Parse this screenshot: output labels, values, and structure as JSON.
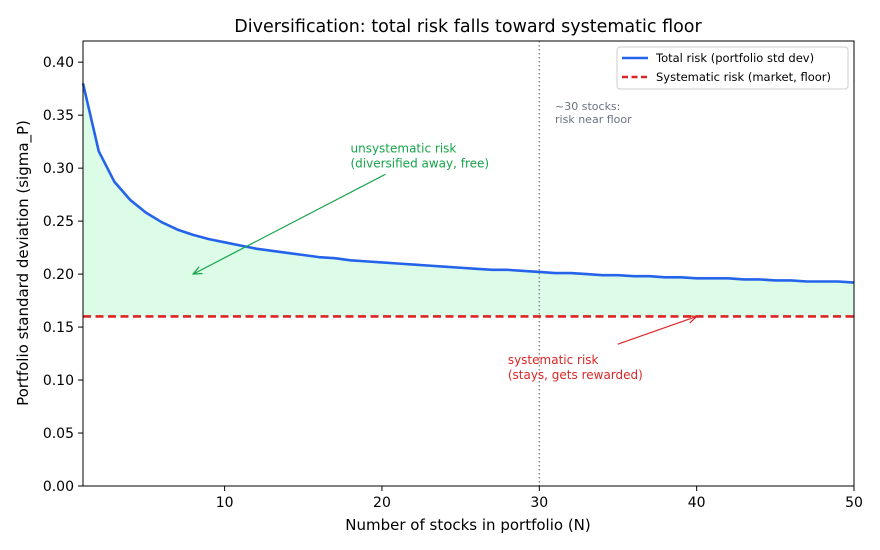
{
  "chart_data": {
    "type": "line",
    "title": "Diversification: total risk falls toward systematic floor",
    "xlabel": "Number of stocks in portfolio (N)",
    "ylabel": "Portfolio standard deviation (sigma_P)",
    "xlim": [
      1,
      50
    ],
    "ylim": [
      0,
      0.42
    ],
    "x_ticks": [
      10,
      20,
      30,
      40,
      50
    ],
    "y_ticks": [
      "0.00",
      "0.05",
      "0.10",
      "0.15",
      "0.20",
      "0.25",
      "0.30",
      "0.35",
      "0.40"
    ],
    "grid": false,
    "legend_position": "top-right",
    "series": [
      {
        "name": "Total risk (portfolio std dev)",
        "color": "#2563eb",
        "style": "solid",
        "x": [
          1,
          2,
          3,
          4,
          5,
          6,
          7,
          8,
          9,
          10,
          11,
          12,
          13,
          14,
          15,
          16,
          17,
          18,
          19,
          20,
          21,
          22,
          23,
          24,
          25,
          26,
          27,
          28,
          29,
          30,
          31,
          32,
          33,
          34,
          35,
          36,
          37,
          38,
          39,
          40,
          41,
          42,
          43,
          44,
          45,
          46,
          47,
          48,
          49,
          50
        ],
        "y": [
          0.38,
          0.316,
          0.287,
          0.27,
          0.258,
          0.249,
          0.242,
          0.237,
          0.233,
          0.23,
          0.227,
          0.224,
          0.222,
          0.22,
          0.218,
          0.216,
          0.215,
          0.213,
          0.212,
          0.211,
          0.21,
          0.209,
          0.208,
          0.207,
          0.206,
          0.205,
          0.204,
          0.204,
          0.203,
          0.202,
          0.201,
          0.201,
          0.2,
          0.199,
          0.199,
          0.198,
          0.198,
          0.197,
          0.197,
          0.196,
          0.196,
          0.196,
          0.195,
          0.195,
          0.194,
          0.194,
          0.193,
          0.193,
          0.193,
          0.192
        ]
      },
      {
        "name": "Systematic risk (market, floor)",
        "color": "#dc2626",
        "style": "dashed",
        "y_const": 0.16
      }
    ],
    "vline": {
      "x": 30,
      "color": "#808080",
      "style": "dotted"
    },
    "fill": {
      "between": [
        "Total risk (portfolio std dev)",
        "Systematic risk (market, floor)"
      ],
      "color": "#dcfce7"
    },
    "annotations": [
      {
        "lines": [
          "~30 stocks:",
          "risk near floor"
        ],
        "color": "#6b7280",
        "x": 31,
        "y": 0.355
      },
      {
        "lines": [
          "unsystematic risk",
          "(diversified away, free)"
        ],
        "color": "#16a34a",
        "x": 18,
        "y": 0.315,
        "arrow_to": [
          8,
          0.2
        ]
      },
      {
        "lines": [
          "systematic risk",
          "(stays, gets rewarded)"
        ],
        "color": "#dc2626",
        "x": 28,
        "y": 0.115,
        "arrow_to": [
          40,
          0.16
        ]
      }
    ]
  }
}
